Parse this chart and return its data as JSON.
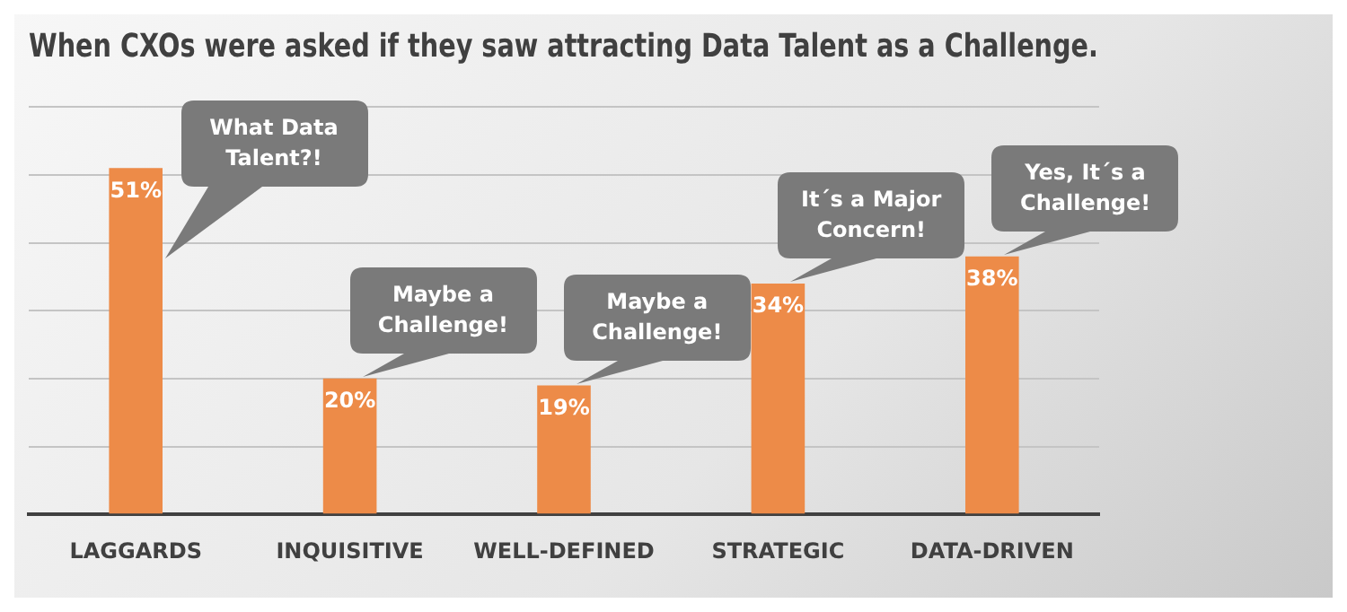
{
  "chart_data": {
    "type": "bar",
    "title": "When CXOs were asked if they saw attracting Data Talent as a Challenge.",
    "categories": [
      "LAGGARDS",
      "INQUISITIVE",
      "WELL-DEFINED",
      "STRATEGIC",
      "DATA-DRIVEN"
    ],
    "values": [
      51,
      20,
      19,
      34,
      38
    ],
    "color": "#ed8b48",
    "value_labels": [
      "51%",
      "20%",
      "19%",
      "34%",
      "38%"
    ],
    "tick_labels": "x",
    "grid": "y",
    "legend": false,
    "annotations": [
      "What Data Talent?!",
      "Maybe a Challenge!",
      "Maybe a Challenge!",
      "It´s a Major Concern!",
      "Yes, It´s a Challenge!"
    ]
  }
}
